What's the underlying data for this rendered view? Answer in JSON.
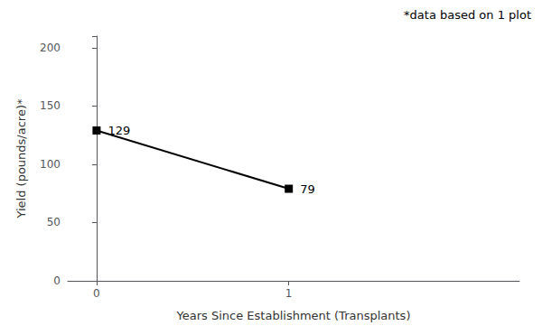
{
  "chart_data": {
    "type": "line",
    "x": [
      0,
      1
    ],
    "values": [
      129,
      79
    ],
    "xlabel": "Years Since Establishment (Transplants)",
    "ylabel": "Yield (pounds/acre)*",
    "annotation": "*data based on 1 plot",
    "color": "#000000",
    "marker": "square",
    "data_labels": true,
    "xlim": [
      -0.15,
      2.2
    ],
    "xticks": [
      0,
      1
    ],
    "ylim": [
      0,
      210
    ],
    "yticks": [
      0,
      50,
      100,
      150,
      200
    ],
    "grid": false
  }
}
